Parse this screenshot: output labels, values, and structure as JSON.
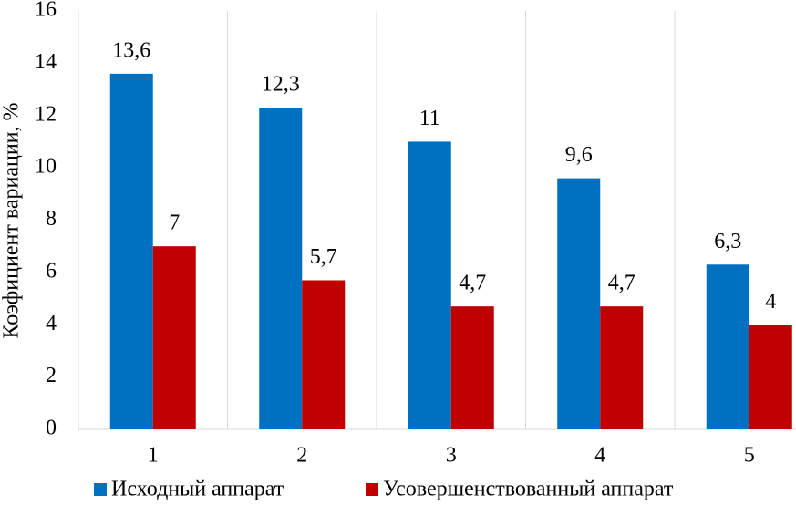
{
  "chart_data": {
    "type": "bar",
    "y_label": "Коэфициент вариации, %",
    "categories": [
      "1",
      "2",
      "3",
      "4",
      "5"
    ],
    "series": [
      {
        "name": "Исходный аппарат",
        "color": "#0070c0",
        "values": [
          13.6,
          12.3,
          11,
          9.6,
          6.3
        ],
        "value_labels": [
          "13,6",
          "12,3",
          "11",
          "9,6",
          "6,3"
        ]
      },
      {
        "name": "Усовершенствованный аппарат",
        "color": "#c00000",
        "values": [
          7,
          5.7,
          4.7,
          4.7,
          4
        ],
        "value_labels": [
          "7",
          "5,7",
          "4,7",
          "4,7",
          "4"
        ]
      }
    ],
    "ylim": [
      0,
      16
    ],
    "yticks": [
      0,
      2,
      4,
      6,
      8,
      10,
      12,
      14,
      16
    ],
    "legend": "bottom"
  }
}
